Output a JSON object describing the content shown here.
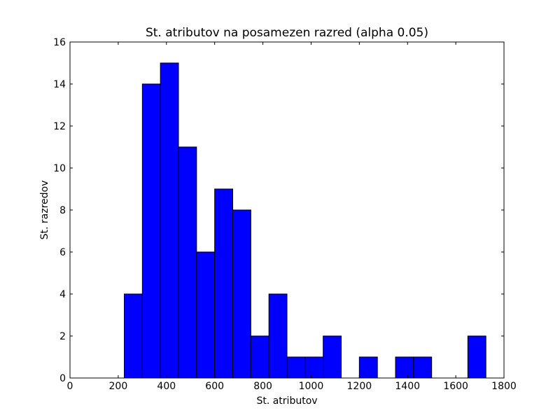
{
  "chart_data": {
    "type": "bar",
    "title": "St. atributov na posamezen razred (alpha 0.05)",
    "xlabel": "St. atributov",
    "ylabel": "St. razredov",
    "xlim": [
      0,
      1800
    ],
    "ylim": [
      0,
      16
    ],
    "xticks": [
      "0",
      "200",
      "400",
      "600",
      "800",
      "1000",
      "1200",
      "1400",
      "1600",
      "1800"
    ],
    "yticks": [
      "0",
      "2",
      "4",
      "6",
      "8",
      "10",
      "12",
      "14",
      "16"
    ],
    "bins": [
      {
        "start": 225,
        "end": 300,
        "value": 4
      },
      {
        "start": 300,
        "end": 375,
        "value": 14
      },
      {
        "start": 375,
        "end": 450,
        "value": 15
      },
      {
        "start": 450,
        "end": 525,
        "value": 11
      },
      {
        "start": 525,
        "end": 600,
        "value": 6
      },
      {
        "start": 600,
        "end": 675,
        "value": 9
      },
      {
        "start": 675,
        "end": 750,
        "value": 8
      },
      {
        "start": 750,
        "end": 825,
        "value": 2
      },
      {
        "start": 825,
        "end": 900,
        "value": 4
      },
      {
        "start": 900,
        "end": 975,
        "value": 1
      },
      {
        "start": 975,
        "end": 1050,
        "value": 1
      },
      {
        "start": 1050,
        "end": 1125,
        "value": 2
      },
      {
        "start": 1125,
        "end": 1200,
        "value": 0
      },
      {
        "start": 1200,
        "end": 1275,
        "value": 1
      },
      {
        "start": 1275,
        "end": 1350,
        "value": 0
      },
      {
        "start": 1350,
        "end": 1425,
        "value": 1
      },
      {
        "start": 1425,
        "end": 1500,
        "value": 1
      },
      {
        "start": 1500,
        "end": 1575,
        "value": 0
      },
      {
        "start": 1575,
        "end": 1650,
        "value": 0
      },
      {
        "start": 1650,
        "end": 1725,
        "value": 2
      }
    ],
    "bar_color": "#0000ff",
    "edge_color": "#000000",
    "grid": false
  }
}
